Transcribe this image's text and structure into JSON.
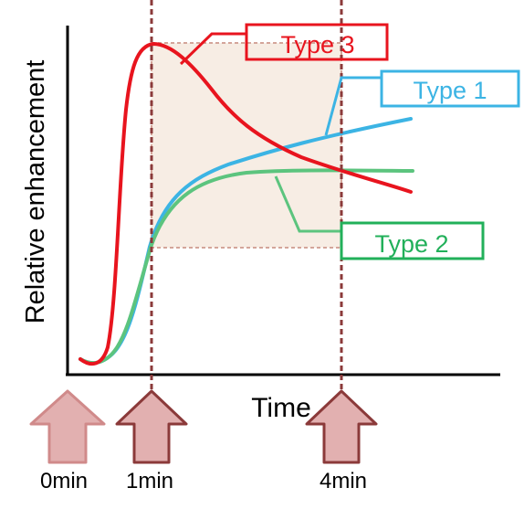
{
  "axis": {
    "ylabel": "Relative enhancement",
    "xlabel": "Time"
  },
  "curves": [
    {
      "name": "Type 1",
      "color": "#3cb4e4"
    },
    {
      "name": "Type 2",
      "color": "#22b05a"
    },
    {
      "name": "Type 3",
      "color": "#e8141e"
    }
  ],
  "markers": [
    {
      "label": "0min"
    },
    {
      "label": "1min"
    },
    {
      "label": "4min"
    }
  ],
  "colors": {
    "axis": "#000000",
    "guide_line": "#8b3a3a",
    "arrow_fill": "#e2b0b0",
    "arrow_stroke_light": "#d08a8a",
    "arrow_stroke_dark": "#8b3a3a",
    "region_fill": "#f7ede4",
    "region_border": "#d4a59a"
  }
}
